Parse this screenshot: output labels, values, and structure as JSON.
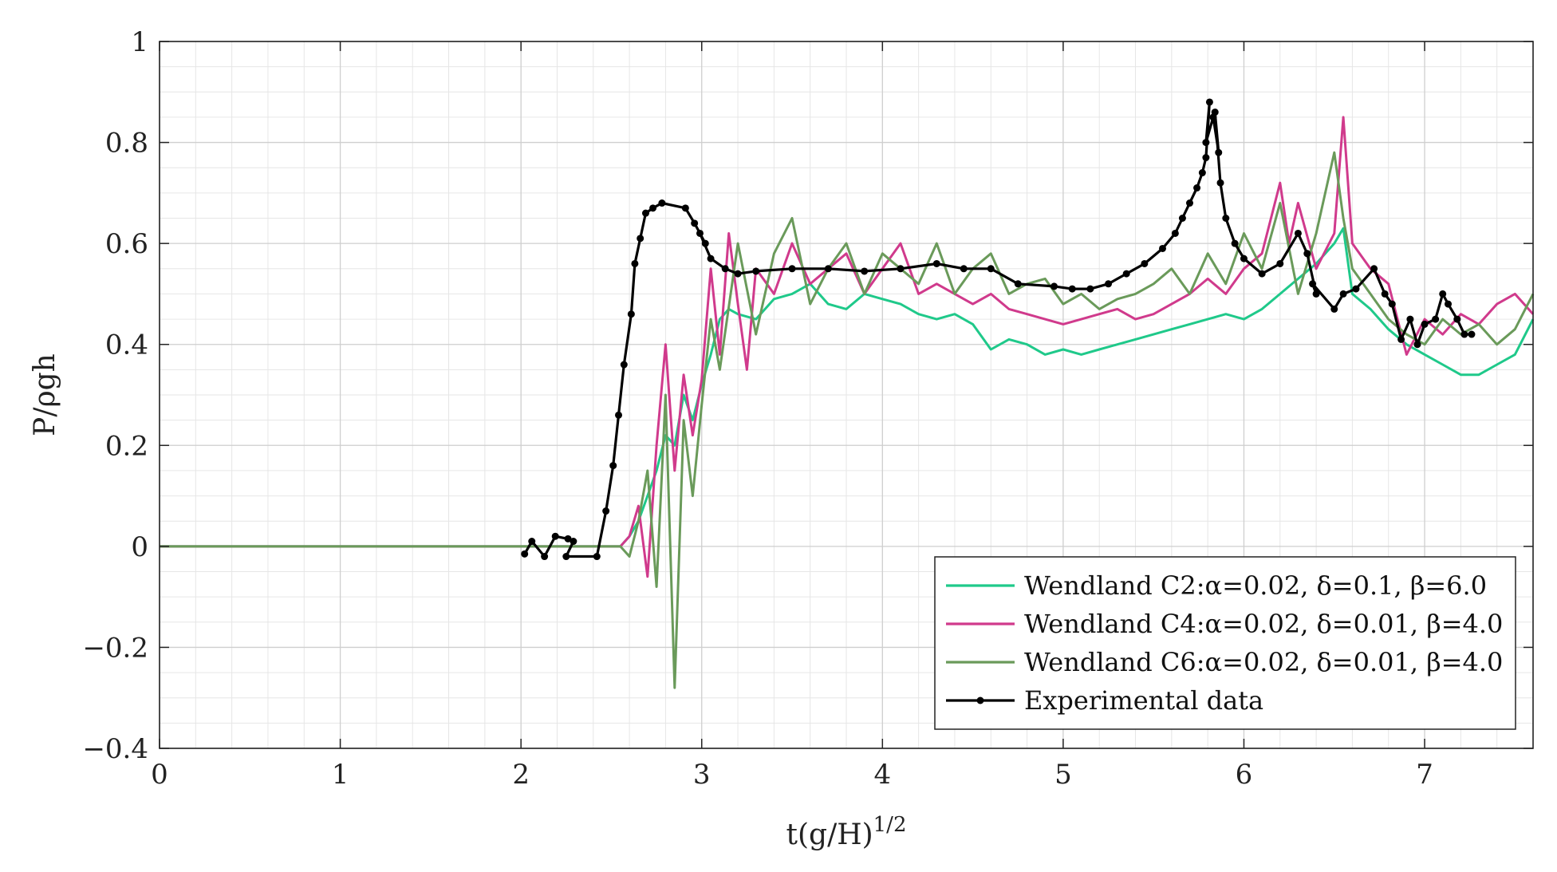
{
  "chart_data": {
    "type": "line",
    "xlabel": "t(g/H)",
    "xlabel_sup": "1/2",
    "ylabel": "P/ρgh",
    "xlim": [
      0,
      7.6
    ],
    "ylim": [
      -0.4,
      1
    ],
    "xticks": [
      0,
      1,
      2,
      3,
      4,
      5,
      6,
      7
    ],
    "xtick_labels": [
      "0",
      "1",
      "2",
      "3",
      "4",
      "5",
      "6",
      "7"
    ],
    "yticks": [
      -0.4,
      -0.2,
      0,
      0.2,
      0.4,
      0.6,
      0.8,
      1
    ],
    "ytick_labels": [
      "−0.4",
      "−0.2",
      "0",
      "0.2",
      "0.4",
      "0.6",
      "0.8",
      "1"
    ],
    "grid": true,
    "minor_grid": true,
    "legend_position": "bottom-right",
    "series": [
      {
        "name": "Wendland C2:α=0.02, δ=0.1, β=6.0",
        "color": "#1fc98a",
        "marker": false,
        "x": [
          0,
          2.55,
          2.6,
          2.65,
          2.7,
          2.75,
          2.8,
          2.85,
          2.9,
          2.95,
          3.0,
          3.05,
          3.1,
          3.15,
          3.2,
          3.3,
          3.4,
          3.5,
          3.6,
          3.7,
          3.8,
          3.9,
          4.0,
          4.1,
          4.2,
          4.3,
          4.4,
          4.5,
          4.6,
          4.7,
          4.8,
          4.9,
          5.0,
          5.1,
          5.2,
          5.3,
          5.4,
          5.5,
          5.6,
          5.7,
          5.8,
          5.9,
          6.0,
          6.1,
          6.2,
          6.3,
          6.4,
          6.5,
          6.55,
          6.6,
          6.7,
          6.8,
          6.9,
          7.0,
          7.1,
          7.2,
          7.3,
          7.4,
          7.5,
          7.6
        ],
        "y": [
          0,
          0,
          0.02,
          0.05,
          0.1,
          0.15,
          0.22,
          0.2,
          0.3,
          0.25,
          0.32,
          0.38,
          0.45,
          0.47,
          0.46,
          0.45,
          0.49,
          0.5,
          0.52,
          0.48,
          0.47,
          0.5,
          0.49,
          0.48,
          0.46,
          0.45,
          0.46,
          0.44,
          0.39,
          0.41,
          0.4,
          0.38,
          0.39,
          0.38,
          0.39,
          0.4,
          0.41,
          0.42,
          0.43,
          0.44,
          0.45,
          0.46,
          0.45,
          0.47,
          0.5,
          0.53,
          0.56,
          0.6,
          0.63,
          0.5,
          0.47,
          0.43,
          0.4,
          0.38,
          0.36,
          0.34,
          0.34,
          0.36,
          0.38,
          0.45
        ]
      },
      {
        "name": "Wendland C4:α=0.02, δ=0.01, β=4.0",
        "color": "#d03a8c",
        "marker": false,
        "x": [
          0,
          2.55,
          2.6,
          2.65,
          2.7,
          2.75,
          2.8,
          2.85,
          2.9,
          2.95,
          3.0,
          3.05,
          3.1,
          3.15,
          3.2,
          3.25,
          3.3,
          3.4,
          3.5,
          3.6,
          3.7,
          3.8,
          3.9,
          4.0,
          4.1,
          4.2,
          4.3,
          4.4,
          4.5,
          4.6,
          4.7,
          4.8,
          4.9,
          5.0,
          5.1,
          5.2,
          5.3,
          5.4,
          5.5,
          5.6,
          5.7,
          5.8,
          5.9,
          6.0,
          6.1,
          6.2,
          6.25,
          6.3,
          6.4,
          6.5,
          6.55,
          6.6,
          6.7,
          6.8,
          6.9,
          7.0,
          7.1,
          7.2,
          7.3,
          7.4,
          7.5,
          7.6
        ],
        "y": [
          0,
          0,
          0.02,
          0.08,
          -0.06,
          0.2,
          0.4,
          0.15,
          0.34,
          0.22,
          0.33,
          0.55,
          0.38,
          0.62,
          0.48,
          0.35,
          0.55,
          0.5,
          0.6,
          0.52,
          0.55,
          0.58,
          0.5,
          0.55,
          0.6,
          0.5,
          0.52,
          0.5,
          0.48,
          0.5,
          0.47,
          0.46,
          0.45,
          0.44,
          0.45,
          0.46,
          0.47,
          0.45,
          0.46,
          0.48,
          0.5,
          0.53,
          0.5,
          0.55,
          0.58,
          0.72,
          0.6,
          0.68,
          0.55,
          0.62,
          0.85,
          0.6,
          0.55,
          0.52,
          0.38,
          0.45,
          0.42,
          0.46,
          0.44,
          0.48,
          0.5,
          0.46
        ]
      },
      {
        "name": "Wendland C6:α=0.02, δ=0.01, β=4.0",
        "color": "#6a9a5a",
        "marker": false,
        "x": [
          0,
          2.55,
          2.6,
          2.65,
          2.7,
          2.75,
          2.8,
          2.85,
          2.9,
          2.95,
          3.0,
          3.05,
          3.1,
          3.2,
          3.3,
          3.4,
          3.5,
          3.6,
          3.7,
          3.8,
          3.9,
          4.0,
          4.1,
          4.2,
          4.3,
          4.4,
          4.5,
          4.6,
          4.7,
          4.8,
          4.9,
          5.0,
          5.1,
          5.2,
          5.3,
          5.4,
          5.5,
          5.6,
          5.7,
          5.8,
          5.9,
          6.0,
          6.1,
          6.2,
          6.3,
          6.4,
          6.5,
          6.55,
          6.6,
          6.7,
          6.8,
          6.9,
          7.0,
          7.1,
          7.2,
          7.3,
          7.4,
          7.5,
          7.6
        ],
        "y": [
          0,
          0,
          -0.02,
          0.05,
          0.15,
          -0.08,
          0.3,
          -0.28,
          0.25,
          0.1,
          0.28,
          0.45,
          0.35,
          0.6,
          0.42,
          0.58,
          0.65,
          0.48,
          0.55,
          0.6,
          0.5,
          0.58,
          0.55,
          0.52,
          0.6,
          0.5,
          0.55,
          0.58,
          0.5,
          0.52,
          0.53,
          0.48,
          0.5,
          0.47,
          0.49,
          0.5,
          0.52,
          0.55,
          0.5,
          0.58,
          0.52,
          0.62,
          0.55,
          0.68,
          0.5,
          0.62,
          0.78,
          0.65,
          0.55,
          0.5,
          0.45,
          0.42,
          0.4,
          0.45,
          0.42,
          0.44,
          0.4,
          0.43,
          0.5
        ]
      },
      {
        "name": "Experimental data",
        "color": "#000000",
        "marker": true,
        "x": [
          2.02,
          2.06,
          2.13,
          2.19,
          2.26,
          2.29,
          2.25,
          2.42,
          2.47,
          2.51,
          2.54,
          2.57,
          2.61,
          2.63,
          2.66,
          2.69,
          2.73,
          2.78,
          2.91,
          2.96,
          3.02,
          2.99,
          3.05,
          3.13,
          3.2,
          3.3,
          3.5,
          3.7,
          3.9,
          4.1,
          4.3,
          4.45,
          4.6,
          4.75,
          4.95,
          5.05,
          5.15,
          5.25,
          5.35,
          5.45,
          5.55,
          5.62,
          5.66,
          5.7,
          5.74,
          5.77,
          5.79,
          5.81,
          5.79,
          5.83,
          5.86,
          5.84,
          5.87,
          5.9,
          5.95,
          6.0,
          6.1,
          6.2,
          6.3,
          6.35,
          6.4,
          6.38,
          6.5,
          6.55,
          6.62,
          6.72,
          6.78,
          6.82,
          6.87,
          6.92,
          6.96,
          7.0,
          7.06,
          7.1,
          7.13,
          7.18,
          7.22,
          7.26
        ],
        "y": [
          -0.015,
          0.01,
          -0.02,
          0.02,
          0.015,
          0.01,
          -0.02,
          -0.02,
          0.07,
          0.16,
          0.26,
          0.36,
          0.46,
          0.56,
          0.61,
          0.66,
          0.67,
          0.68,
          0.67,
          0.64,
          0.6,
          0.62,
          0.57,
          0.55,
          0.54,
          0.545,
          0.55,
          0.55,
          0.545,
          0.55,
          0.56,
          0.55,
          0.55,
          0.52,
          0.515,
          0.51,
          0.51,
          0.52,
          0.54,
          0.56,
          0.59,
          0.62,
          0.65,
          0.68,
          0.71,
          0.74,
          0.77,
          0.88,
          0.8,
          0.85,
          0.78,
          0.86,
          0.72,
          0.65,
          0.6,
          0.57,
          0.54,
          0.56,
          0.62,
          0.58,
          0.5,
          0.52,
          0.47,
          0.5,
          0.51,
          0.55,
          0.5,
          0.48,
          0.41,
          0.45,
          0.4,
          0.44,
          0.45,
          0.5,
          0.48,
          0.45,
          0.42,
          0.42
        ]
      }
    ]
  }
}
